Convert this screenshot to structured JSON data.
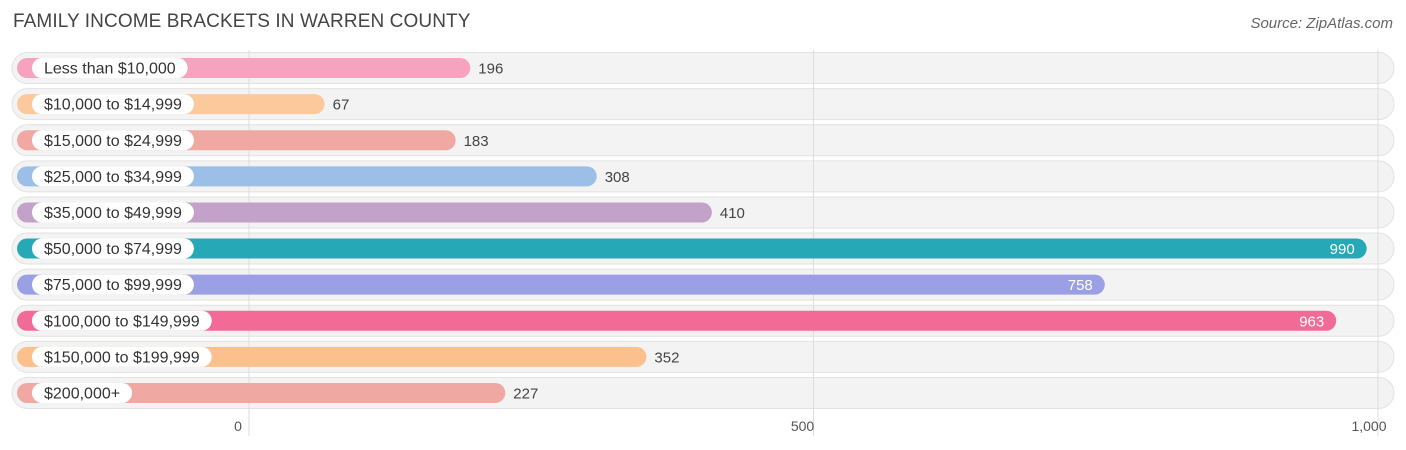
{
  "chart_data": {
    "type": "bar",
    "orientation": "horizontal",
    "title": "FAMILY INCOME BRACKETS IN WARREN COUNTY",
    "source": "Source: ZipAtlas.com",
    "categories": [
      "Less than $10,000",
      "$10,000 to $14,999",
      "$15,000 to $24,999",
      "$25,000 to $34,999",
      "$35,000 to $49,999",
      "$50,000 to $74,999",
      "$75,000 to $99,999",
      "$100,000 to $149,999",
      "$150,000 to $199,999",
      "$200,000+"
    ],
    "values": [
      196,
      67,
      183,
      308,
      410,
      990,
      758,
      963,
      352,
      227
    ],
    "value_labels": [
      "196",
      "67",
      "183",
      "308",
      "410",
      "990",
      "758",
      "963",
      "352",
      "227"
    ],
    "colors": [
      "#f7a3bf",
      "#fbc99b",
      "#f0a8a3",
      "#9bbfe6",
      "#c3a2ca",
      "#27a8b6",
      "#9aa0e3",
      "#f26b97",
      "#fbc08b",
      "#f0a8a3"
    ],
    "xlim": [
      0,
      1000
    ],
    "ticks": [
      0,
      500,
      1000
    ],
    "tick_labels": [
      "0",
      "500",
      "1,000"
    ],
    "xlabel": "",
    "ylabel": "",
    "grid": true
  }
}
